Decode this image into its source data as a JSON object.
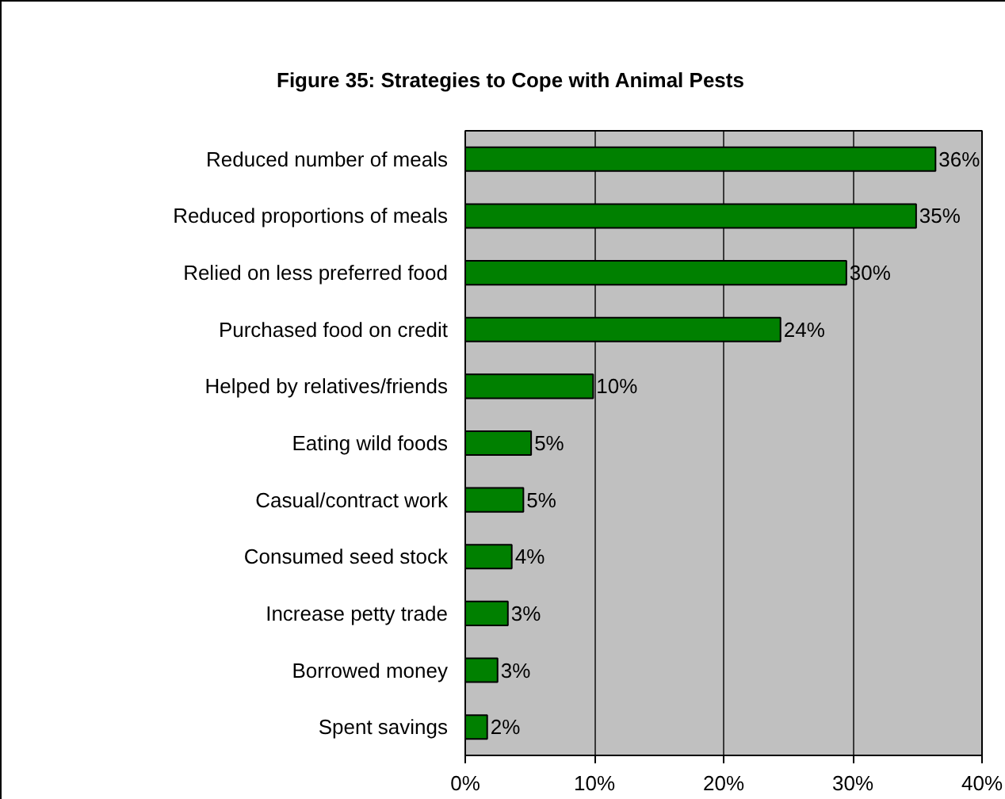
{
  "chart_data": {
    "type": "bar",
    "orientation": "horizontal",
    "title": "Figure 35: Strategies to Cope with Animal Pests",
    "categories": [
      "Reduced number of meals",
      "Reduced proportions of meals",
      "Relied on less preferred food",
      "Purchased food on credit",
      "Helped by relatives/friends",
      "Eating wild foods",
      "Casual/contract work",
      "Consumed seed stock",
      "Increase petty trade",
      "Borrowed money",
      "Spent savings"
    ],
    "values": [
      36.4,
      34.9,
      29.5,
      24.4,
      9.9,
      5.1,
      4.5,
      3.6,
      3.3,
      2.5,
      1.7
    ],
    "value_labels": [
      "36%",
      "35%",
      "30%",
      "24%",
      "10%",
      "5%",
      "5%",
      "4%",
      "3%",
      "3%",
      "2%"
    ],
    "color": "#008000",
    "xlim": [
      0,
      40
    ],
    "xticks": [
      {
        "value": 0,
        "label": "0%"
      },
      {
        "value": 10,
        "label": "10%"
      },
      {
        "value": 20,
        "label": "20%"
      },
      {
        "value": 30,
        "label": "30%"
      },
      {
        "value": 40,
        "label": "40%"
      }
    ],
    "grid": "x"
  }
}
